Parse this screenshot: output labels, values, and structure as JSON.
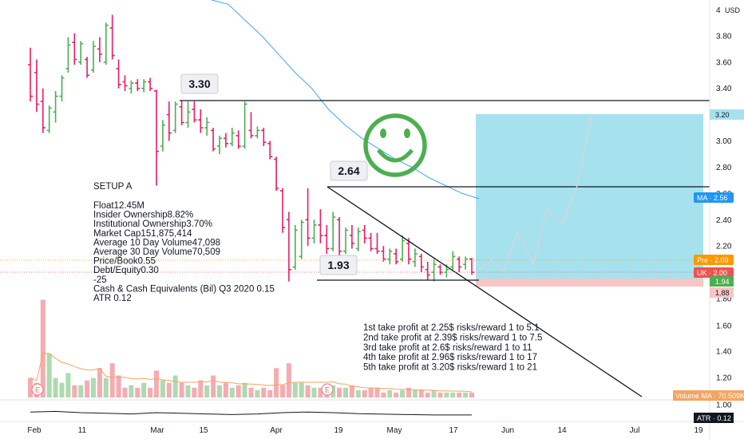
{
  "chart_data": {
    "type": "candlestick",
    "currency": "USD",
    "y_ticks": [
      "4",
      "3.80",
      "3.60",
      "3.40",
      "3.20",
      "3.00",
      "2.80",
      "2.60",
      "2.40",
      "2.20",
      "2.00",
      "1.80"
    ],
    "y_ticks_lower": [
      "1.60",
      "1.40",
      "1.20",
      "1.00"
    ],
    "x_ticks": [
      "Feb",
      "11",
      "Mar",
      "15",
      "Apr",
      "19",
      "May",
      "17",
      "Jun",
      "14",
      "Jul",
      "19"
    ],
    "ylim": [
      1.8,
      4.0
    ],
    "candles": [
      {
        "o": 3.58,
        "h": 3.71,
        "l": 3.3,
        "c": 3.34
      },
      {
        "o": 3.52,
        "h": 3.62,
        "l": 3.22,
        "c": 3.28
      },
      {
        "o": 3.3,
        "h": 3.4,
        "l": 3.06,
        "c": 3.1
      },
      {
        "o": 3.08,
        "h": 3.27,
        "l": 3.06,
        "c": 3.25
      },
      {
        "o": 3.22,
        "h": 3.38,
        "l": 3.14,
        "c": 3.34
      },
      {
        "o": 3.34,
        "h": 3.5,
        "l": 3.3,
        "c": 3.48
      },
      {
        "o": 3.55,
        "h": 3.79,
        "l": 3.52,
        "c": 3.73
      },
      {
        "o": 3.75,
        "h": 3.82,
        "l": 3.58,
        "c": 3.62
      },
      {
        "o": 3.6,
        "h": 3.76,
        "l": 3.58,
        "c": 3.74
      },
      {
        "o": 3.62,
        "h": 3.64,
        "l": 3.48,
        "c": 3.5
      },
      {
        "o": 3.54,
        "h": 3.76,
        "l": 3.52,
        "c": 3.72
      },
      {
        "o": 3.7,
        "h": 3.79,
        "l": 3.6,
        "c": 3.66
      },
      {
        "o": 3.6,
        "h": 3.9,
        "l": 3.58,
        "c": 3.88
      },
      {
        "o": 3.86,
        "h": 3.96,
        "l": 3.62,
        "c": 3.65
      },
      {
        "o": 3.55,
        "h": 3.62,
        "l": 3.4,
        "c": 3.43
      },
      {
        "o": 3.45,
        "h": 3.5,
        "l": 3.38,
        "c": 3.42
      },
      {
        "o": 3.4,
        "h": 3.46,
        "l": 3.36,
        "c": 3.44
      },
      {
        "o": 3.44,
        "h": 3.47,
        "l": 3.38,
        "c": 3.4
      },
      {
        "o": 3.4,
        "h": 3.47,
        "l": 3.37,
        "c": 3.45
      },
      {
        "o": 3.45,
        "h": 3.48,
        "l": 3.38,
        "c": 3.4
      },
      {
        "o": 3.38,
        "h": 3.39,
        "l": 2.66,
        "c": 2.92
      },
      {
        "o": 2.96,
        "h": 3.16,
        "l": 2.92,
        "c": 3.12
      },
      {
        "o": 3.2,
        "h": 3.3,
        "l": 3.0,
        "c": 3.06
      },
      {
        "o": 3.08,
        "h": 3.3,
        "l": 3.06,
        "c": 3.28
      },
      {
        "o": 3.26,
        "h": 3.31,
        "l": 3.12,
        "c": 3.14
      },
      {
        "o": 3.14,
        "h": 3.3,
        "l": 3.1,
        "c": 3.22
      },
      {
        "o": 3.24,
        "h": 3.3,
        "l": 3.14,
        "c": 3.16
      },
      {
        "o": 3.16,
        "h": 3.24,
        "l": 3.06,
        "c": 3.1
      },
      {
        "o": 3.1,
        "h": 3.18,
        "l": 3.04,
        "c": 3.14
      },
      {
        "o": 3.08,
        "h": 3.1,
        "l": 2.92,
        "c": 2.94
      },
      {
        "o": 2.96,
        "h": 3.04,
        "l": 2.9,
        "c": 3.02
      },
      {
        "o": 3.02,
        "h": 3.06,
        "l": 2.95,
        "c": 2.98
      },
      {
        "o": 2.98,
        "h": 3.1,
        "l": 2.96,
        "c": 3.06
      },
      {
        "o": 3.04,
        "h": 3.08,
        "l": 2.94,
        "c": 2.96
      },
      {
        "o": 2.96,
        "h": 3.3,
        "l": 2.94,
        "c": 3.28
      },
      {
        "o": 3.08,
        "h": 3.22,
        "l": 3.02,
        "c": 3.04
      },
      {
        "o": 3.04,
        "h": 3.11,
        "l": 3.02,
        "c": 3.08
      },
      {
        "o": 3.08,
        "h": 3.1,
        "l": 2.96,
        "c": 2.99
      },
      {
        "o": 2.98,
        "h": 3.0,
        "l": 2.86,
        "c": 2.88
      },
      {
        "o": 2.86,
        "h": 2.88,
        "l": 2.62,
        "c": 2.64
      },
      {
        "o": 2.62,
        "h": 2.64,
        "l": 2.3,
        "c": 2.34
      },
      {
        "o": 2.4,
        "h": 2.46,
        "l": 1.93,
        "c": 2.02
      },
      {
        "o": 2.04,
        "h": 2.36,
        "l": 2.02,
        "c": 2.32
      },
      {
        "o": 2.12,
        "h": 2.4,
        "l": 2.1,
        "c": 2.38
      },
      {
        "o": 2.4,
        "h": 2.64,
        "l": 2.2,
        "c": 2.26
      },
      {
        "o": 2.26,
        "h": 2.4,
        "l": 2.22,
        "c": 2.36
      },
      {
        "o": 2.36,
        "h": 2.48,
        "l": 2.22,
        "c": 2.28
      },
      {
        "o": 2.28,
        "h": 2.36,
        "l": 2.14,
        "c": 2.18
      },
      {
        "o": 2.18,
        "h": 2.46,
        "l": 2.16,
        "c": 2.42
      },
      {
        "o": 2.4,
        "h": 2.42,
        "l": 2.12,
        "c": 2.16
      },
      {
        "o": 2.16,
        "h": 2.34,
        "l": 2.14,
        "c": 2.32
      },
      {
        "o": 2.28,
        "h": 2.36,
        "l": 2.18,
        "c": 2.22
      },
      {
        "o": 2.18,
        "h": 2.34,
        "l": 2.16,
        "c": 2.31
      },
      {
        "o": 2.32,
        "h": 2.36,
        "l": 2.22,
        "c": 2.26
      },
      {
        "o": 2.26,
        "h": 2.3,
        "l": 2.16,
        "c": 2.18
      },
      {
        "o": 2.18,
        "h": 2.3,
        "l": 2.14,
        "c": 2.16
      },
      {
        "o": 2.16,
        "h": 2.2,
        "l": 2.08,
        "c": 2.1
      },
      {
        "o": 2.1,
        "h": 2.18,
        "l": 2.06,
        "c": 2.16
      },
      {
        "o": 2.14,
        "h": 2.18,
        "l": 2.06,
        "c": 2.08
      },
      {
        "o": 2.1,
        "h": 2.28,
        "l": 2.08,
        "c": 2.24
      },
      {
        "o": 2.22,
        "h": 2.26,
        "l": 2.06,
        "c": 2.1
      },
      {
        "o": 2.08,
        "h": 2.18,
        "l": 2.04,
        "c": 2.14
      },
      {
        "o": 2.12,
        "h": 2.14,
        "l": 2.0,
        "c": 2.04
      },
      {
        "o": 2.02,
        "h": 2.08,
        "l": 1.94,
        "c": 1.98
      },
      {
        "o": 2.0,
        "h": 2.1,
        "l": 1.93,
        "c": 2.06
      },
      {
        "o": 2.04,
        "h": 2.06,
        "l": 1.98,
        "c": 2.0
      },
      {
        "o": 2.0,
        "h": 2.06,
        "l": 1.96,
        "c": 2.02
      },
      {
        "o": 2.04,
        "h": 2.16,
        "l": 2.02,
        "c": 2.12
      },
      {
        "o": 2.1,
        "h": 2.12,
        "l": 2.0,
        "c": 2.04
      },
      {
        "o": 2.06,
        "h": 2.12,
        "l": 2.02,
        "c": 2.1
      },
      {
        "o": 2.1,
        "h": 2.11,
        "l": 1.98,
        "c": 2.0
      }
    ],
    "ma_line": [
      [
        0,
        4.2
      ],
      [
        6,
        4.04
      ],
      [
        10,
        3.92
      ],
      [
        14,
        3.8
      ],
      [
        18,
        3.66
      ],
      [
        22,
        3.52
      ],
      [
        26,
        3.4
      ],
      [
        30,
        3.24
      ],
      [
        34,
        3.12
      ],
      [
        38,
        3.02
      ],
      [
        42,
        2.94
      ],
      [
        46,
        2.86
      ],
      [
        50,
        2.8
      ],
      [
        54,
        2.72
      ],
      [
        58,
        2.66
      ],
      [
        62,
        2.6
      ],
      [
        66,
        2.56
      ]
    ],
    "volume": [
      0.08,
      0.06,
      0.4,
      0.18,
      0.08,
      0.06,
      0.1,
      0.05,
      0.05,
      0.07,
      0.08,
      0.12,
      0.08,
      0.14,
      0.09,
      0.04,
      0.05,
      0.04,
      0.06,
      0.04,
      0.11,
      0.07,
      0.06,
      0.09,
      0.06,
      0.05,
      0.04,
      0.07,
      0.05,
      0.09,
      0.05,
      0.06,
      0.04,
      0.05,
      0.06,
      0.04,
      0.03,
      0.04,
      0.03,
      0.12,
      0.05,
      0.14,
      0.06,
      0.06,
      0.05,
      0.04,
      0.04,
      0.03,
      0.05,
      0.04,
      0.04,
      0.05,
      0.03,
      0.03,
      0.04,
      0.04,
      0.02,
      0.03,
      0.02,
      0.03,
      0.04,
      0.03,
      0.03,
      0.02,
      0.03,
      0.02,
      0.02,
      0.02,
      0.02,
      0.02,
      0.02
    ],
    "volume_up": [
      false,
      false,
      false,
      true,
      true,
      true,
      true,
      false,
      true,
      false,
      true,
      false,
      true,
      false,
      false,
      false,
      true,
      false,
      true,
      false,
      false,
      true,
      false,
      true,
      false,
      true,
      false,
      false,
      true,
      false,
      true,
      false,
      true,
      false,
      true,
      false,
      true,
      false,
      false,
      false,
      false,
      false,
      true,
      true,
      false,
      true,
      false,
      false,
      true,
      false,
      true,
      false,
      true,
      false,
      false,
      false,
      false,
      true,
      false,
      true,
      false,
      true,
      false,
      false,
      true,
      false,
      true,
      true,
      false,
      true,
      false
    ],
    "horizontal_levels": [
      3.3,
      2.64,
      1.93
    ],
    "projection": [
      [
        2.0,
        0
      ],
      [
        2.1,
        1
      ],
      [
        2.04,
        2
      ],
      [
        2.26,
        3
      ],
      [
        2.08,
        4
      ],
      [
        2.44,
        5
      ],
      [
        2.32,
        6
      ],
      [
        3.2,
        8
      ]
    ],
    "atr_line": [
      [
        0,
        0.55
      ],
      [
        4,
        0.6
      ],
      [
        8,
        0.5
      ],
      [
        12,
        0.45
      ],
      [
        16,
        0.4
      ],
      [
        20,
        0.5
      ],
      [
        24,
        0.45
      ],
      [
        28,
        0.4
      ],
      [
        32,
        0.35
      ],
      [
        36,
        0.4
      ],
      [
        40,
        0.5
      ],
      [
        44,
        0.55
      ],
      [
        48,
        0.5
      ],
      [
        52,
        0.42
      ],
      [
        56,
        0.38
      ],
      [
        60,
        0.35
      ],
      [
        64,
        0.32
      ],
      [
        70,
        0.32
      ]
    ]
  },
  "callouts": {
    "high": "3.30",
    "mid": "2.64",
    "low": "1.93"
  },
  "price_tags": {
    "target": "3.20",
    "ma": "MA · 2.56",
    "pre": "Pre · 2.09",
    "uk": "UK · 2.00",
    "last": "1.94",
    "stop": "1.88",
    "volume_ma": "Volume MA · 70.509K",
    "atr": "ATR · 0.12"
  },
  "notes": {
    "setup": "SETUP A",
    "lines": [
      "Float12.45M",
      "Insider Ownership8.82%",
      "Institutional Ownership3.70%",
      "Market Cap151,875,414",
      "Average 10 Day Volume47,098",
      "Average 30 Day Volume70,509",
      "Price/Book0.55",
      "Debt/Equity0.30",
      "-25",
      "Cash & Cash Equivalents (Bil) Q3 2020 0.15",
      "ATR 0.12"
    ]
  },
  "take_profits": [
    "1st take profit at 2.25$ risks/reward 1 to 5.1",
    "2nd take profit at 2.39$ risks/reward 1 to 7.5",
    "3rd take profit at 2.6$ risks/reward 1 to 11",
    "4th take profit at 2.96$ risks/reward 1 to 17",
    "5th take profit at 3.20$ risks/reward 1 to 21"
  ],
  "earnings_marker": "E",
  "colors": {
    "up": "#4caf50",
    "down": "#e91e63",
    "ma": "#42a5f5",
    "target_zone": "#a5e2ee",
    "stop_zone": "#f7c5c5",
    "smiley": "#4caf50",
    "tag_ma": "#2196f3",
    "tag_pre": "#ff9800",
    "tag_uk": "#ef5350",
    "tag_last": "#4caf50",
    "tag_stop": "#f7c5c5"
  }
}
